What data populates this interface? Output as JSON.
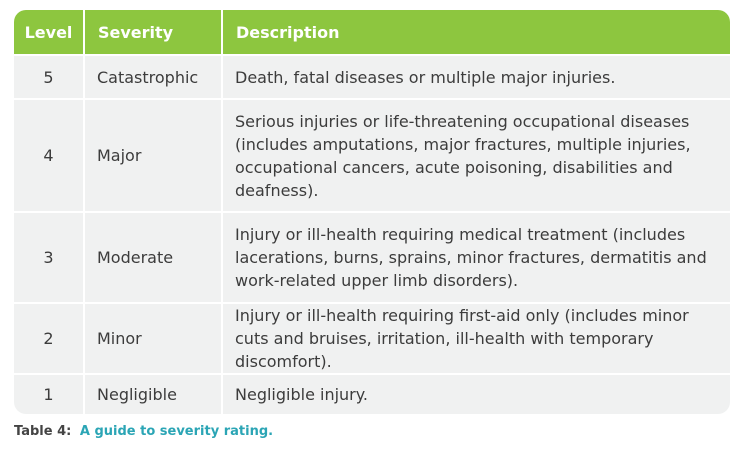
{
  "table": {
    "header": [
      "Level",
      "Severity",
      "Description"
    ],
    "rows": [
      [
        5,
        "Catastrophic",
        "Death, fatal diseases or multiple major injuries."
      ],
      [
        4,
        "Major",
        "Serious injuries or life-threatening occupational diseases (includes amputations, major fractures, multiple injuries, occupational cancers, acute poisoning, disabilities and deafness)."
      ],
      [
        3,
        "Moderate",
        "Injury or ill-health requiring medical treatment (includes lacerations, burns, sprains, minor fractures, dermatitis and work-related upper limb disorders)."
      ],
      [
        2,
        "Minor",
        "Injury or ill-health requiring first-aid only (includes minor cuts and bruises, irritation, ill-health with temporary discomfort)."
      ],
      [
        1,
        "Negligible",
        "Negligible injury."
      ]
    ]
  },
  "caption": {
    "label": "Table 4:",
    "text": "A guide to severity rating."
  }
}
